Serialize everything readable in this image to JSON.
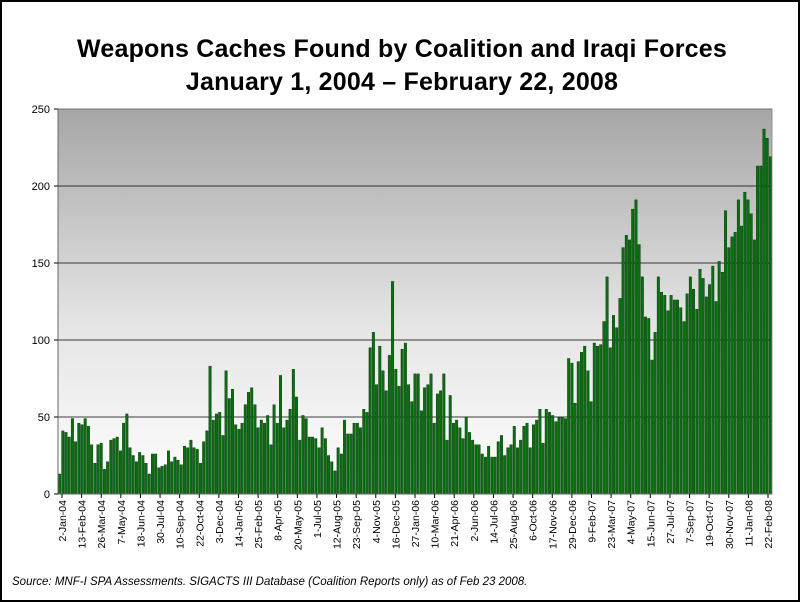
{
  "chart_data": {
    "type": "bar",
    "title_line1": "Weapons Caches Found by Coalition and Iraqi Forces",
    "title_line2": "January 1, 2004 – February 22, 2008",
    "xlabel": "",
    "ylabel": "",
    "ylim": [
      0,
      250
    ],
    "yticks": [
      0,
      50,
      100,
      150,
      200,
      250
    ],
    "grid": true,
    "legend": "none",
    "bar_color": "#0a6e12",
    "tick_labels": [
      "2-Jan-04",
      "13-Feb-04",
      "26-Mar-04",
      "7-May-04",
      "18-Jun-04",
      "30-Jul-04",
      "10-Sep-04",
      "22-Oct-04",
      "3-Dec-04",
      "14-Jan-05",
      "25-Feb-05",
      "8-Apr-05",
      "20-May-05",
      "1-Jul-05",
      "12-Aug-05",
      "23-Sep-05",
      "4-Nov-05",
      "16-Dec-05",
      "27-Jan-06",
      "10-Mar-06",
      "21-Apr-06",
      "2-Jun-06",
      "14-Jul-06",
      "25-Aug-06",
      "6-Oct-06",
      "17-Nov-06",
      "29-Dec-06",
      "9-Feb-07",
      "23-Mar-07",
      "4-May-07",
      "15-Jun-07",
      "27-Jul-07",
      "7-Sep-07",
      "19-Oct-07",
      "30-Nov-07",
      "11-Jan-08",
      "22-Feb-08"
    ],
    "values": [
      13,
      41,
      40,
      37,
      49,
      34,
      46,
      45,
      49,
      44,
      32,
      20,
      32,
      33,
      16,
      21,
      35,
      36,
      37,
      28,
      46,
      52,
      30,
      25,
      21,
      27,
      25,
      20,
      13,
      26,
      26,
      17,
      18,
      19,
      28,
      21,
      24,
      22,
      19,
      31,
      30,
      35,
      30,
      29,
      20,
      34,
      41,
      83,
      48,
      52,
      53,
      38,
      80,
      62,
      68,
      45,
      42,
      46,
      58,
      66,
      69,
      58,
      43,
      48,
      46,
      51,
      32,
      58,
      46,
      77,
      43,
      48,
      55,
      81,
      63,
      35,
      51,
      49,
      37,
      37,
      36,
      30,
      43,
      36,
      25,
      21,
      15,
      30,
      26,
      48,
      39,
      39,
      46,
      46,
      43,
      55,
      53,
      95,
      105,
      71,
      96,
      80,
      67,
      90,
      138,
      81,
      70,
      94,
      98,
      71,
      60,
      78,
      78,
      54,
      69,
      71,
      78,
      46,
      65,
      67,
      78,
      35,
      64,
      46,
      48,
      43,
      36,
      50,
      40,
      35,
      32,
      32,
      26,
      24,
      31,
      24,
      24,
      34,
      38,
      25,
      30,
      32,
      44,
      30,
      35,
      44,
      46,
      30,
      45,
      48,
      55,
      33,
      55,
      53,
      51,
      47,
      50,
      50,
      49,
      88,
      85,
      59,
      86,
      92,
      96,
      80,
      60,
      98,
      96,
      97,
      112,
      141,
      95,
      116,
      108,
      127,
      160,
      168,
      165,
      185,
      191,
      162,
      141,
      115,
      114,
      87,
      105,
      141,
      131,
      129,
      119,
      129,
      126,
      126,
      121,
      112,
      130,
      141,
      133,
      120,
      146,
      140,
      128,
      136,
      148,
      125,
      151,
      144,
      184,
      160,
      167,
      170,
      191,
      174,
      196,
      191,
      182,
      165,
      213,
      213,
      237,
      231,
      219
    ]
  },
  "source_note": "Source:  MNF-I SPA Assessments.  SIGACTS III Database (Coalition Reports only) as of Feb 23 2008."
}
